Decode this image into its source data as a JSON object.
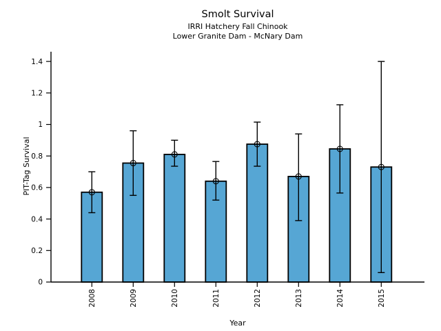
{
  "chart_data": {
    "type": "bar",
    "title": "Smolt Survival",
    "subtitle_lines": [
      "IRRI Hatchery Fall Chinook",
      "Lower Granite Dam - McNary Dam"
    ],
    "xlabel": "Year",
    "ylabel": "PIT-Tag Survival",
    "categories": [
      "2008",
      "2009",
      "2010",
      "2011",
      "2012",
      "2013",
      "2014",
      "2015"
    ],
    "values": [
      0.57,
      0.755,
      0.81,
      0.64,
      0.875,
      0.67,
      0.845,
      0.73
    ],
    "error_low": [
      0.44,
      0.55,
      0.735,
      0.52,
      0.735,
      0.39,
      0.565,
      0.06
    ],
    "error_high": [
      0.7,
      0.96,
      0.9,
      0.765,
      1.015,
      0.94,
      1.125,
      1.4
    ],
    "yticks": [
      0,
      0.2,
      0.4,
      0.6,
      0.8,
      1,
      1.2,
      1.4
    ],
    "ytick_labels": [
      "0",
      "0.2",
      "0.4",
      "0.6",
      "0.8",
      "1",
      "1.2",
      "1.4"
    ],
    "ylim": [
      0,
      1.47
    ],
    "xtick_rotation": 90,
    "grid": false,
    "legend": null,
    "marker": "open-circle-plus",
    "colors": {
      "bar_fill": "#56A6D4",
      "bar_edge": "#000000",
      "error_bar": "#000000",
      "marker": "#000000",
      "axis": "#000000",
      "text": "#000000",
      "background": "#FFFFFF"
    }
  }
}
